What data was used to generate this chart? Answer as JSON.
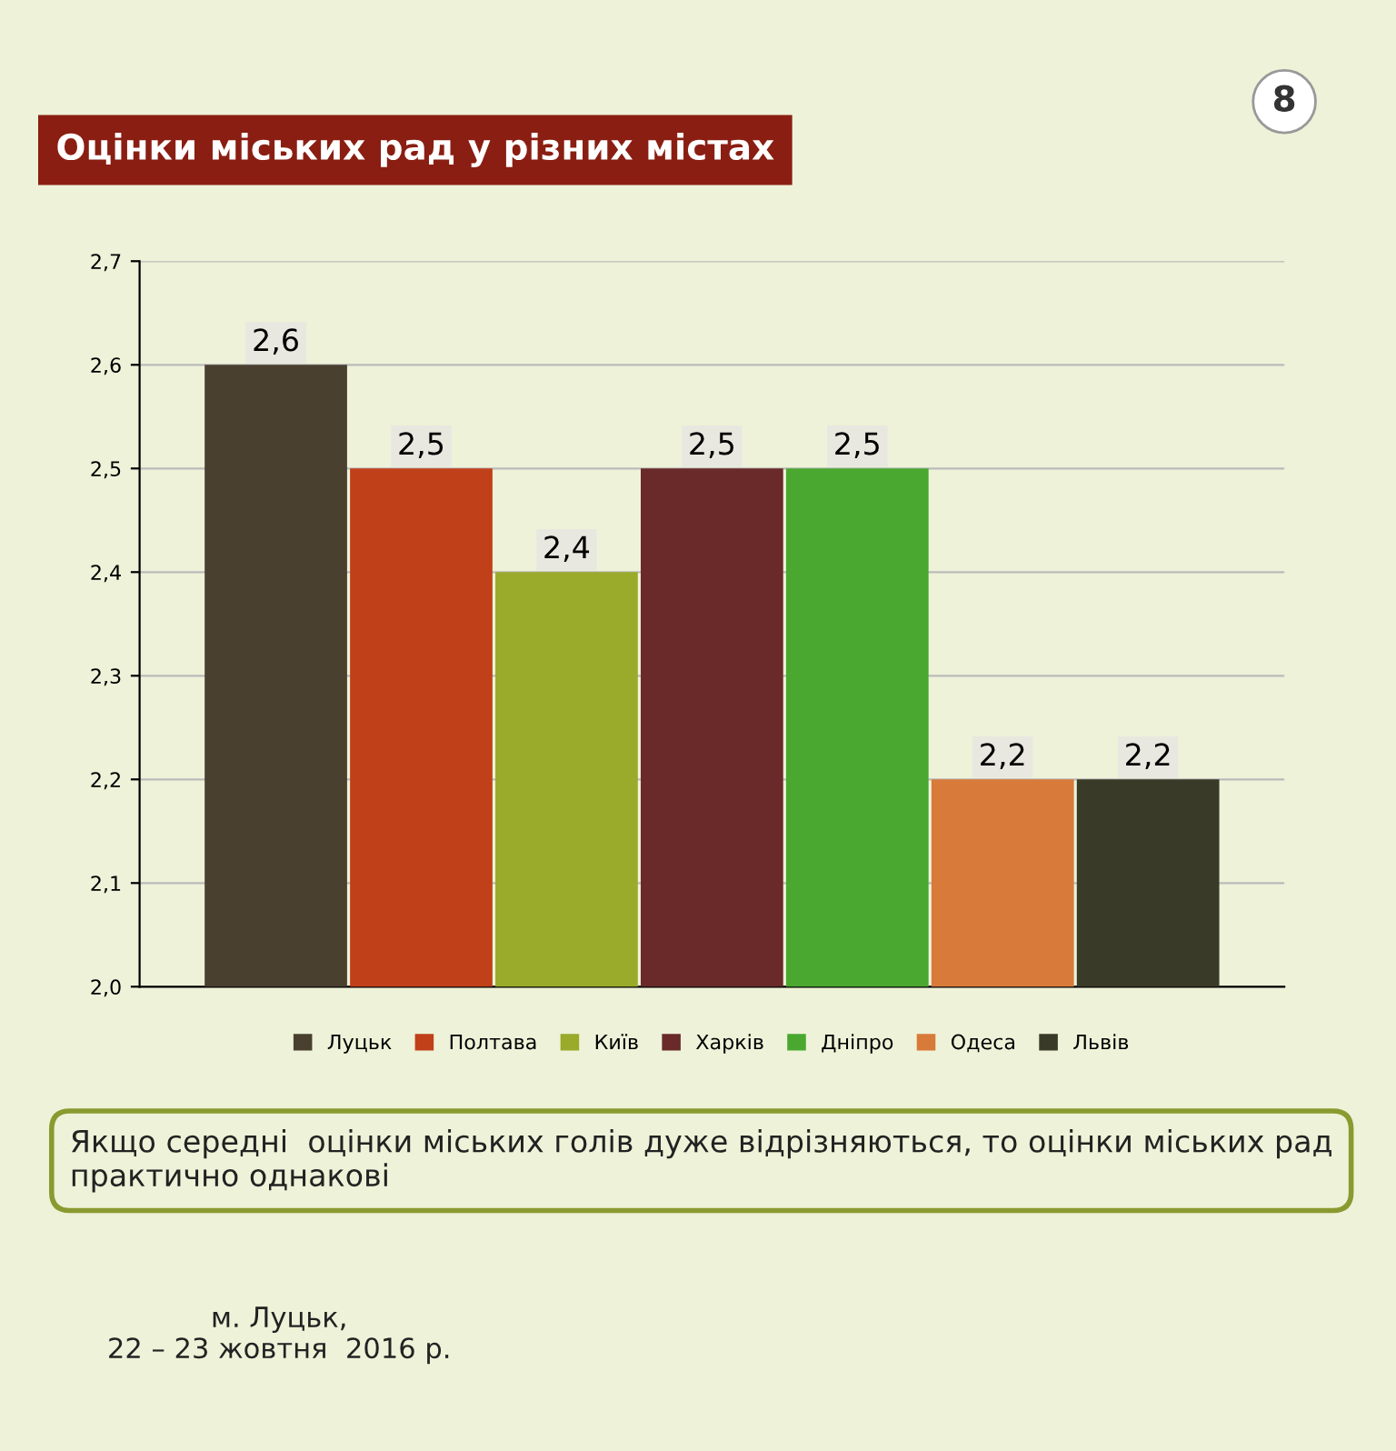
{
  "chart_data": {
    "type": "bar",
    "title": "Оцінки міських рад у різних містах",
    "categories": [
      null
    ],
    "series": [
      {
        "name": "Луцьк",
        "color": "#4a4030",
        "values": [
          2.6
        ],
        "value_labels": [
          "2,6"
        ]
      },
      {
        "name": "Полтава",
        "color": "#c0401a",
        "values": [
          2.5
        ],
        "value_labels": [
          "2,5"
        ]
      },
      {
        "name": "Київ",
        "color": "#9aaa2a",
        "values": [
          2.4
        ],
        "value_labels": [
          "2,4"
        ]
      },
      {
        "name": "Харків",
        "color": "#6a2a2a",
        "values": [
          2.5
        ],
        "value_labels": [
          "2,5"
        ]
      },
      {
        "name": "Дніпро",
        "color": "#4aa830",
        "values": [
          2.5
        ],
        "value_labels": [
          "2,5"
        ]
      },
      {
        "name": "Одеса",
        "color": "#d87a3a",
        "values": [
          2.2
        ],
        "value_labels": [
          "2,2"
        ]
      },
      {
        "name": "Львів",
        "color": "#3a3a28",
        "values": [
          2.2
        ],
        "value_labels": [
          "2,2"
        ]
      }
    ],
    "ylim": [
      2.0,
      2.7
    ],
    "yticks": [
      {
        "value": 2.0,
        "label": "2,0"
      },
      {
        "value": 2.1,
        "label": "2,1"
      },
      {
        "value": 2.2,
        "label": "2,2"
      },
      {
        "value": 2.3,
        "label": "2,3"
      },
      {
        "value": 2.4,
        "label": "2,4"
      },
      {
        "value": 2.5,
        "label": "2,5"
      },
      {
        "value": 2.6,
        "label": "2,6"
      },
      {
        "value": 2.7,
        "label": "2,7"
      }
    ],
    "grid": "y",
    "legend": "bottom",
    "annotations": [
      "8",
      "Якщо середні  оцінки міських голів дуже відрізняються, то оцінки міських рад практично однакові",
      "м. Луцьк,\n22 – 23 жовтня  2016 р."
    ]
  }
}
